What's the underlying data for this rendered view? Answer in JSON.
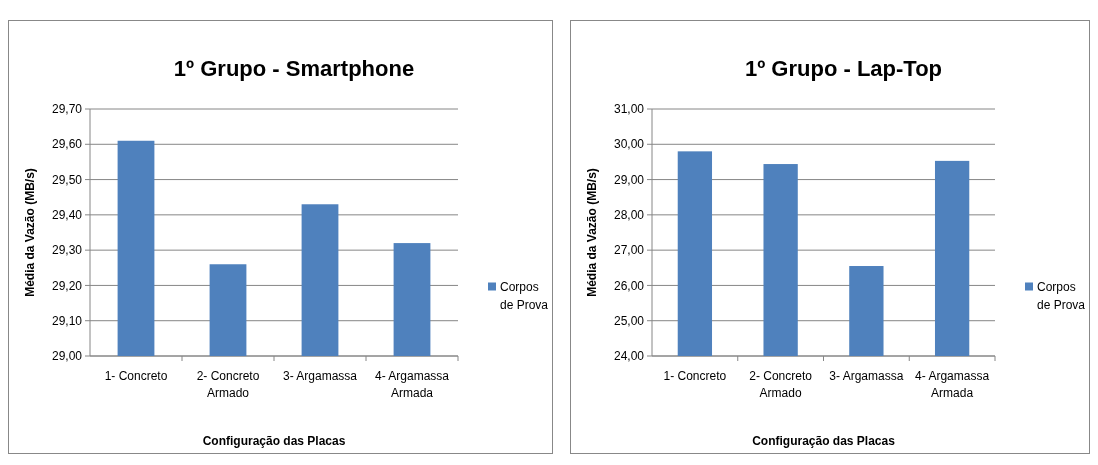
{
  "chart_data": [
    {
      "type": "bar",
      "title": "1º Grupo - Smartphone",
      "xlabel": "Configuração das Placas",
      "ylabel": "Média da Vazão (MB/s)",
      "categories": [
        "1- Concreto",
        "2- Concreto Armado",
        "3- Argamassa",
        "4- Argamassa Armada"
      ],
      "series": [
        {
          "name": "Corpos de Prova",
          "color": "#4f81bd",
          "values": [
            29.61,
            29.26,
            29.43,
            29.32
          ]
        }
      ],
      "ylim": [
        29.0,
        29.7
      ],
      "yticks": [
        {
          "value": 29.0,
          "label": "29,00"
        },
        {
          "value": 29.1,
          "label": "29,10"
        },
        {
          "value": 29.2,
          "label": "29,20"
        },
        {
          "value": 29.3,
          "label": "29,30"
        },
        {
          "value": 29.4,
          "label": "29,40"
        },
        {
          "value": 29.5,
          "label": "29,50"
        },
        {
          "value": 29.6,
          "label": "29,60"
        },
        {
          "value": 29.7,
          "label": "29,70"
        }
      ],
      "grid": "y",
      "legend": "right"
    },
    {
      "type": "bar",
      "title": "1º Grupo - Lap-Top",
      "xlabel": "Configuração das Placas",
      "ylabel": "Média da Vazão (MB/s)",
      "categories": [
        "1- Concreto",
        "2- Concreto Armado",
        "3- Argamassa",
        "4- Argamassa Armada"
      ],
      "series": [
        {
          "name": "Corpos de Prova",
          "color": "#4f81bd",
          "values": [
            29.8,
            29.44,
            26.55,
            29.53
          ]
        }
      ],
      "ylim": [
        24,
        31
      ],
      "yticks": [
        {
          "value": 24,
          "label": "24,00"
        },
        {
          "value": 25,
          "label": "25,00"
        },
        {
          "value": 26,
          "label": "26,00"
        },
        {
          "value": 27,
          "label": "27,00"
        },
        {
          "value": 28,
          "label": "28,00"
        },
        {
          "value": 29,
          "label": "29,00"
        },
        {
          "value": 30,
          "label": "30,00"
        },
        {
          "value": 31,
          "label": "31,00"
        }
      ],
      "grid": "y",
      "legend": "right"
    }
  ]
}
